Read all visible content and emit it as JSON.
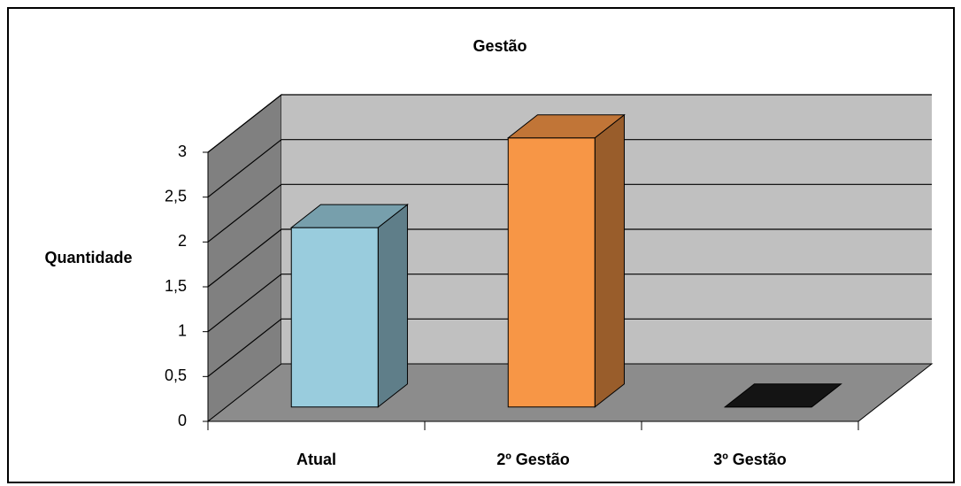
{
  "chart_data": {
    "type": "bar3d",
    "title": "Gestão",
    "y_label": "Quantidade",
    "categories": [
      "Atual",
      "2º Gestão",
      "3º Gestão"
    ],
    "values": [
      2,
      3,
      0
    ],
    "colors": [
      "#99ccdd",
      "#f79646",
      "#1a1a1a"
    ],
    "ylim": [
      0,
      3
    ],
    "yticks": [
      0,
      {
        "value": 0.5,
        "label": "0,5"
      },
      1,
      {
        "value": 1.5,
        "label": "1,5"
      },
      2,
      {
        "value": 2.5,
        "label": "2,5"
      },
      3
    ],
    "grid": true
  }
}
